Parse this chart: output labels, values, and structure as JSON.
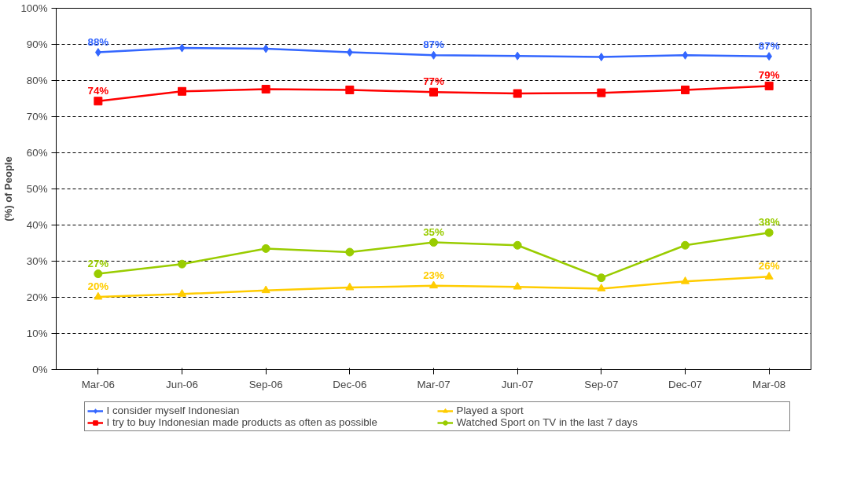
{
  "chart_data": {
    "type": "line",
    "ylabel": "(%) of People",
    "categories": [
      "Mar-06",
      "Jun-06",
      "Sep-06",
      "Dec-06",
      "Mar-07",
      "Jun-07",
      "Sep-07",
      "Dec-07",
      "Mar-08"
    ],
    "ylim": [
      0,
      100
    ],
    "yticks": [
      {
        "value": 0,
        "label": "0%"
      },
      {
        "value": 10,
        "label": "10%"
      },
      {
        "value": 20,
        "label": "20%"
      },
      {
        "value": 30,
        "label": "30%"
      },
      {
        "value": 40,
        "label": "40%"
      },
      {
        "value": 50,
        "label": "50%"
      },
      {
        "value": 60,
        "label": "60%"
      },
      {
        "value": 70,
        "label": "70%"
      },
      {
        "value": 80,
        "label": "80%"
      },
      {
        "value": 90,
        "label": "90%"
      },
      {
        "value": 100,
        "label": "100%"
      }
    ],
    "grid": "y",
    "legend": "bottom",
    "line_style": "solid",
    "series": [
      {
        "name": "I consider myself Indonesian",
        "color": "#3366ff",
        "marker": "diamond",
        "values": [
          87.8,
          89.0,
          88.8,
          87.8,
          87.0,
          86.8,
          86.5,
          87.0,
          86.7
        ],
        "value_labels": [
          "88%",
          null,
          null,
          null,
          "87%",
          null,
          null,
          null,
          "87%"
        ]
      },
      {
        "name": "I try to buy Indonesian made products as often as possible",
        "color": "#ff0000",
        "marker": "square",
        "values": [
          74.3,
          77.0,
          77.6,
          77.4,
          76.8,
          76.4,
          76.6,
          77.4,
          78.5
        ],
        "value_labels": [
          "74%",
          null,
          null,
          null,
          "77%",
          null,
          null,
          null,
          "79%"
        ]
      },
      {
        "name": "Played a sport",
        "color": "#ffcc00",
        "marker": "triangle",
        "values": [
          20.1,
          20.9,
          21.9,
          22.7,
          23.2,
          22.9,
          22.4,
          24.4,
          25.7
        ],
        "value_labels": [
          "20%",
          null,
          null,
          null,
          "23%",
          null,
          null,
          null,
          "26%"
        ]
      },
      {
        "name": "Watched Sport on TV in the last 7 days",
        "color": "#99cc00",
        "marker": "circle",
        "values": [
          26.5,
          29.2,
          33.5,
          32.5,
          35.2,
          34.4,
          25.4,
          34.4,
          37.9
        ],
        "value_labels": [
          "27%",
          null,
          null,
          null,
          "35%",
          null,
          null,
          null,
          "38%"
        ]
      }
    ]
  }
}
